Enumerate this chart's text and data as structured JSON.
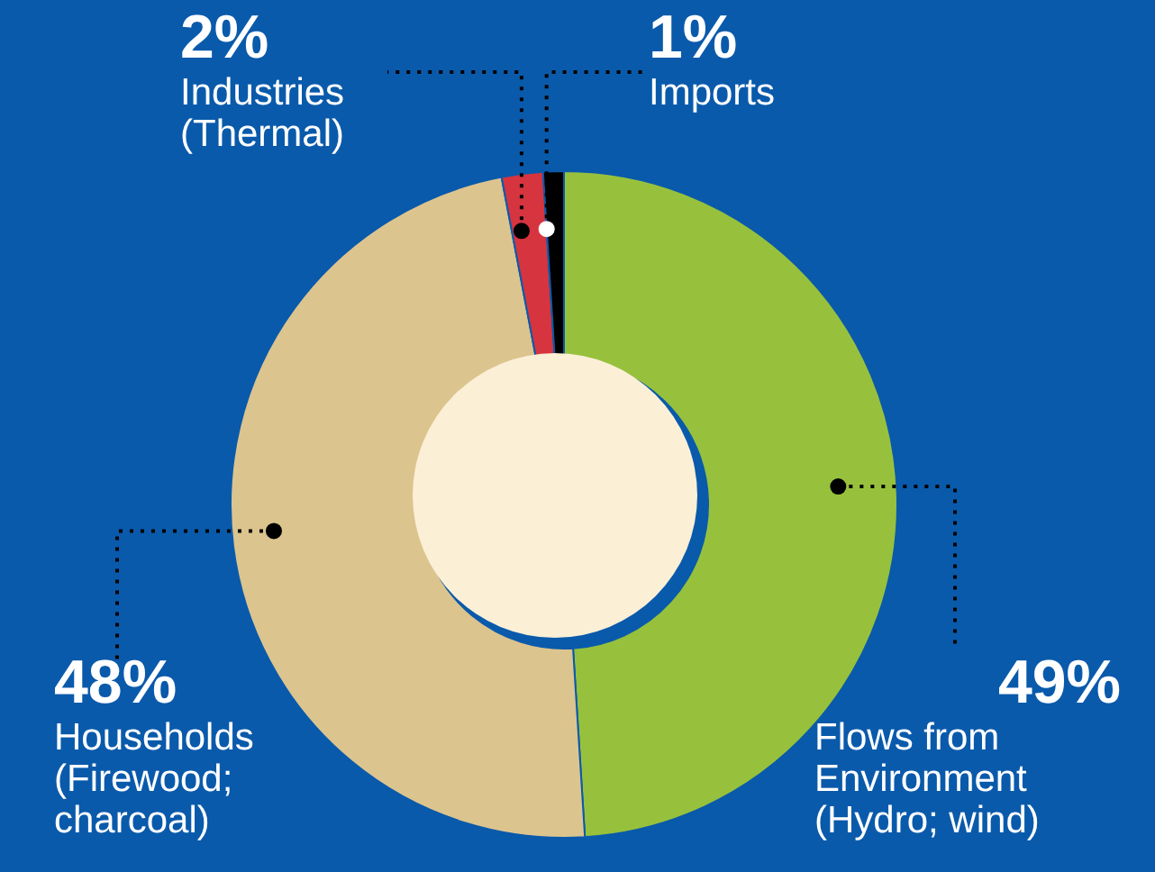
{
  "chart_data": {
    "type": "donut",
    "categories": [
      "Flows from Environment (Hydro; wind)",
      "Households (Firewood; charcoal)",
      "Industries (Thermal)",
      "Imports"
    ],
    "values": [
      49,
      48,
      2,
      1
    ],
    "colors": [
      "#97c13c",
      "#dcc48e",
      "#d6343f",
      "#000000"
    ],
    "value_labels": [
      "49%",
      "48%",
      "2%",
      "1%"
    ]
  }
}
